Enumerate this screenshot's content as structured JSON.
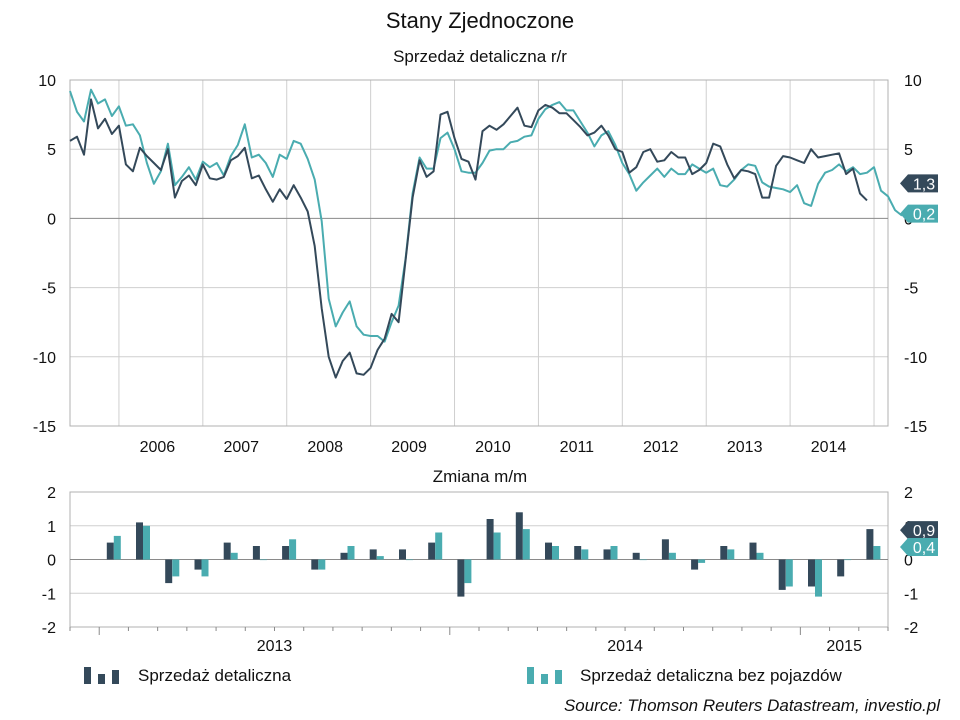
{
  "title": "Stany Zjednoczone",
  "subtitle_top": "Sprzedaż detaliczna r/r",
  "subtitle_bottom": "Zmiana m/m",
  "source": "Source: Thomson Reuters Datastream, investio.pl",
  "colors": {
    "dark": "#34495a",
    "teal": "#4aacb0"
  },
  "legend": [
    {
      "label": "Sprzedaż detaliczna",
      "color": "#34495a"
    },
    {
      "label": "Sprzedaż detaliczna bez pojazdów",
      "color": "#4aacb0"
    }
  ],
  "chart_data": [
    {
      "type": "line",
      "title": "Sprzedaż detaliczna r/r",
      "x_tick_labels": [
        "2006",
        "2007",
        "2008",
        "2009",
        "2010",
        "2011",
        "2012",
        "2013",
        "2014"
      ],
      "x_range": [
        "2005-06",
        "2015-03"
      ],
      "ylim": [
        -15,
        10
      ],
      "y_ticks": [
        10,
        5,
        0,
        -5,
        -10,
        -15
      ],
      "y_tick_labels": [
        "10",
        "5",
        "0",
        "-5",
        "-10",
        "-15"
      ],
      "grid": true,
      "end_labels": [
        {
          "series": "Sprzedaż detaliczna",
          "text": "1,3",
          "value": 1.3
        },
        {
          "series": "Sprzedaż detaliczna bez pojazdów",
          "text": "0,2",
          "value": 0.2
        }
      ],
      "series": [
        {
          "name": "Sprzedaż detaliczna",
          "color": "#34495a",
          "start": "2005-06",
          "values": [
            5.6,
            5.9,
            4.6,
            8.6,
            6.5,
            7.2,
            6.1,
            6.7,
            3.9,
            3.4,
            5.1,
            4.5,
            4.0,
            3.5,
            5.0,
            1.5,
            2.7,
            3.1,
            2.4,
            3.9,
            2.9,
            2.8,
            3.0,
            4.2,
            4.5,
            5.1,
            2.9,
            3.1,
            2.1,
            1.2,
            2.1,
            1.4,
            2.4,
            1.5,
            0.5,
            -2.0,
            -6.5,
            -10.0,
            -11.5,
            -10.3,
            -9.7,
            -11.2,
            -11.3,
            -10.8,
            -9.5,
            -8.7,
            -6.9,
            -7.5,
            -3.0,
            1.5,
            4.2,
            3.0,
            3.4,
            7.5,
            7.7,
            5.8,
            4.3,
            4.1,
            2.8,
            6.3,
            6.7,
            6.4,
            6.8,
            7.4,
            8.0,
            6.7,
            6.6,
            7.8,
            8.2,
            8.0,
            7.6,
            7.6,
            7.1,
            6.6,
            6.0,
            6.2,
            6.7,
            6.0,
            5.0,
            4.8,
            3.3,
            3.7,
            4.8,
            5.0,
            4.1,
            4.2,
            4.8,
            4.4,
            4.4,
            3.2,
            3.5,
            4.0,
            5.4,
            5.2,
            3.9,
            2.9,
            3.5,
            3.4,
            3.2,
            1.5,
            1.5,
            3.8,
            4.5,
            4.4,
            4.2,
            4.0,
            5.0,
            4.4,
            4.5,
            4.6,
            4.7,
            3.2,
            3.6,
            1.8,
            1.3
          ]
        },
        {
          "name": "Sprzedaż detaliczna bez pojazdów",
          "color": "#4aacb0",
          "start": "2005-06",
          "values": [
            9.2,
            7.7,
            7.0,
            9.3,
            8.3,
            8.6,
            7.4,
            8.1,
            6.7,
            6.8,
            6.0,
            4.0,
            2.5,
            3.4,
            5.4,
            2.4,
            3.0,
            3.7,
            2.8,
            4.1,
            3.7,
            4.0,
            3.1,
            4.5,
            5.3,
            6.8,
            4.4,
            4.6,
            4.0,
            3.0,
            4.6,
            4.3,
            5.6,
            5.4,
            4.3,
            2.8,
            -0.2,
            -5.8,
            -7.8,
            -6.8,
            -6.0,
            -7.8,
            -8.4,
            -8.5,
            -8.5,
            -8.9,
            -7.5,
            -6.3,
            -2.9,
            1.8,
            4.4,
            3.6,
            3.6,
            5.8,
            6.2,
            5.0,
            3.4,
            3.3,
            3.3,
            4.0,
            4.9,
            5.0,
            5.0,
            5.5,
            5.6,
            5.9,
            6.0,
            7.2,
            7.9,
            8.2,
            8.4,
            7.8,
            7.8,
            7.0,
            6.2,
            5.2,
            6.0,
            6.3,
            5.3,
            4.0,
            3.2,
            2.0,
            2.6,
            3.1,
            3.6,
            3.0,
            3.6,
            3.2,
            3.2,
            3.9,
            3.6,
            3.3,
            3.6,
            2.4,
            2.3,
            2.8,
            3.5,
            3.9,
            3.8,
            2.6,
            2.3,
            2.2,
            2.1,
            1.9,
            2.4,
            1.1,
            0.9,
            2.5,
            3.3,
            3.5,
            3.9,
            3.4,
            3.7,
            3.2,
            3.3,
            3.7,
            2.0,
            1.6,
            0.6,
            0.2
          ]
        }
      ]
    },
    {
      "type": "bar",
      "title": "Zmiana m/m",
      "x_tick_labels": [
        "2013",
        "2014",
        "2015"
      ],
      "x_range": [
        "2012-12",
        "2015-03"
      ],
      "ylim": [
        -2,
        2
      ],
      "y_ticks": [
        2,
        1,
        0,
        -1,
        -2
      ],
      "y_tick_labels": [
        "2",
        "1",
        "0",
        "-1",
        "-2"
      ],
      "grid": true,
      "end_labels": [
        {
          "series": "Sprzedaż detaliczna",
          "text": "0,9",
          "value": 0.9
        },
        {
          "series": "Sprzedaż detaliczna bez pojazdów",
          "text": "0,4",
          "value": 0.4
        }
      ],
      "categories": [
        "2013-01",
        "2013-02",
        "2013-03",
        "2013-04",
        "2013-05",
        "2013-06",
        "2013-07",
        "2013-08",
        "2013-09",
        "2013-10",
        "2013-11",
        "2013-12",
        "2014-01",
        "2014-02",
        "2014-03",
        "2014-04",
        "2014-05",
        "2014-06",
        "2014-07",
        "2014-08",
        "2014-09",
        "2014-10",
        "2014-11",
        "2014-12",
        "2015-01",
        "2015-02",
        "2015-03"
      ],
      "series": [
        {
          "name": "Sprzedaż detaliczna",
          "color": "#34495a",
          "values": [
            0.5,
            1.1,
            -0.7,
            -0.3,
            0.5,
            0.4,
            0.4,
            -0.3,
            0.2,
            0.3,
            0.3,
            0.5,
            -1.1,
            1.2,
            1.4,
            0.5,
            0.4,
            0.3,
            0.2,
            0.6,
            -0.3,
            0.4,
            0.5,
            -0.9,
            -0.8,
            -0.5,
            0.9
          ]
        },
        {
          "name": "Sprzedaż detaliczna bez pojazdów",
          "color": "#4aacb0",
          "values": [
            0.7,
            1.0,
            -0.5,
            -0.5,
            0.2,
            0.0,
            0.6,
            -0.3,
            0.4,
            0.1,
            0.0,
            0.8,
            -0.7,
            0.8,
            0.9,
            0.4,
            0.3,
            0.4,
            0.0,
            0.2,
            -0.1,
            0.3,
            0.2,
            -0.8,
            -1.1,
            0.0,
            0.4
          ]
        }
      ]
    }
  ]
}
